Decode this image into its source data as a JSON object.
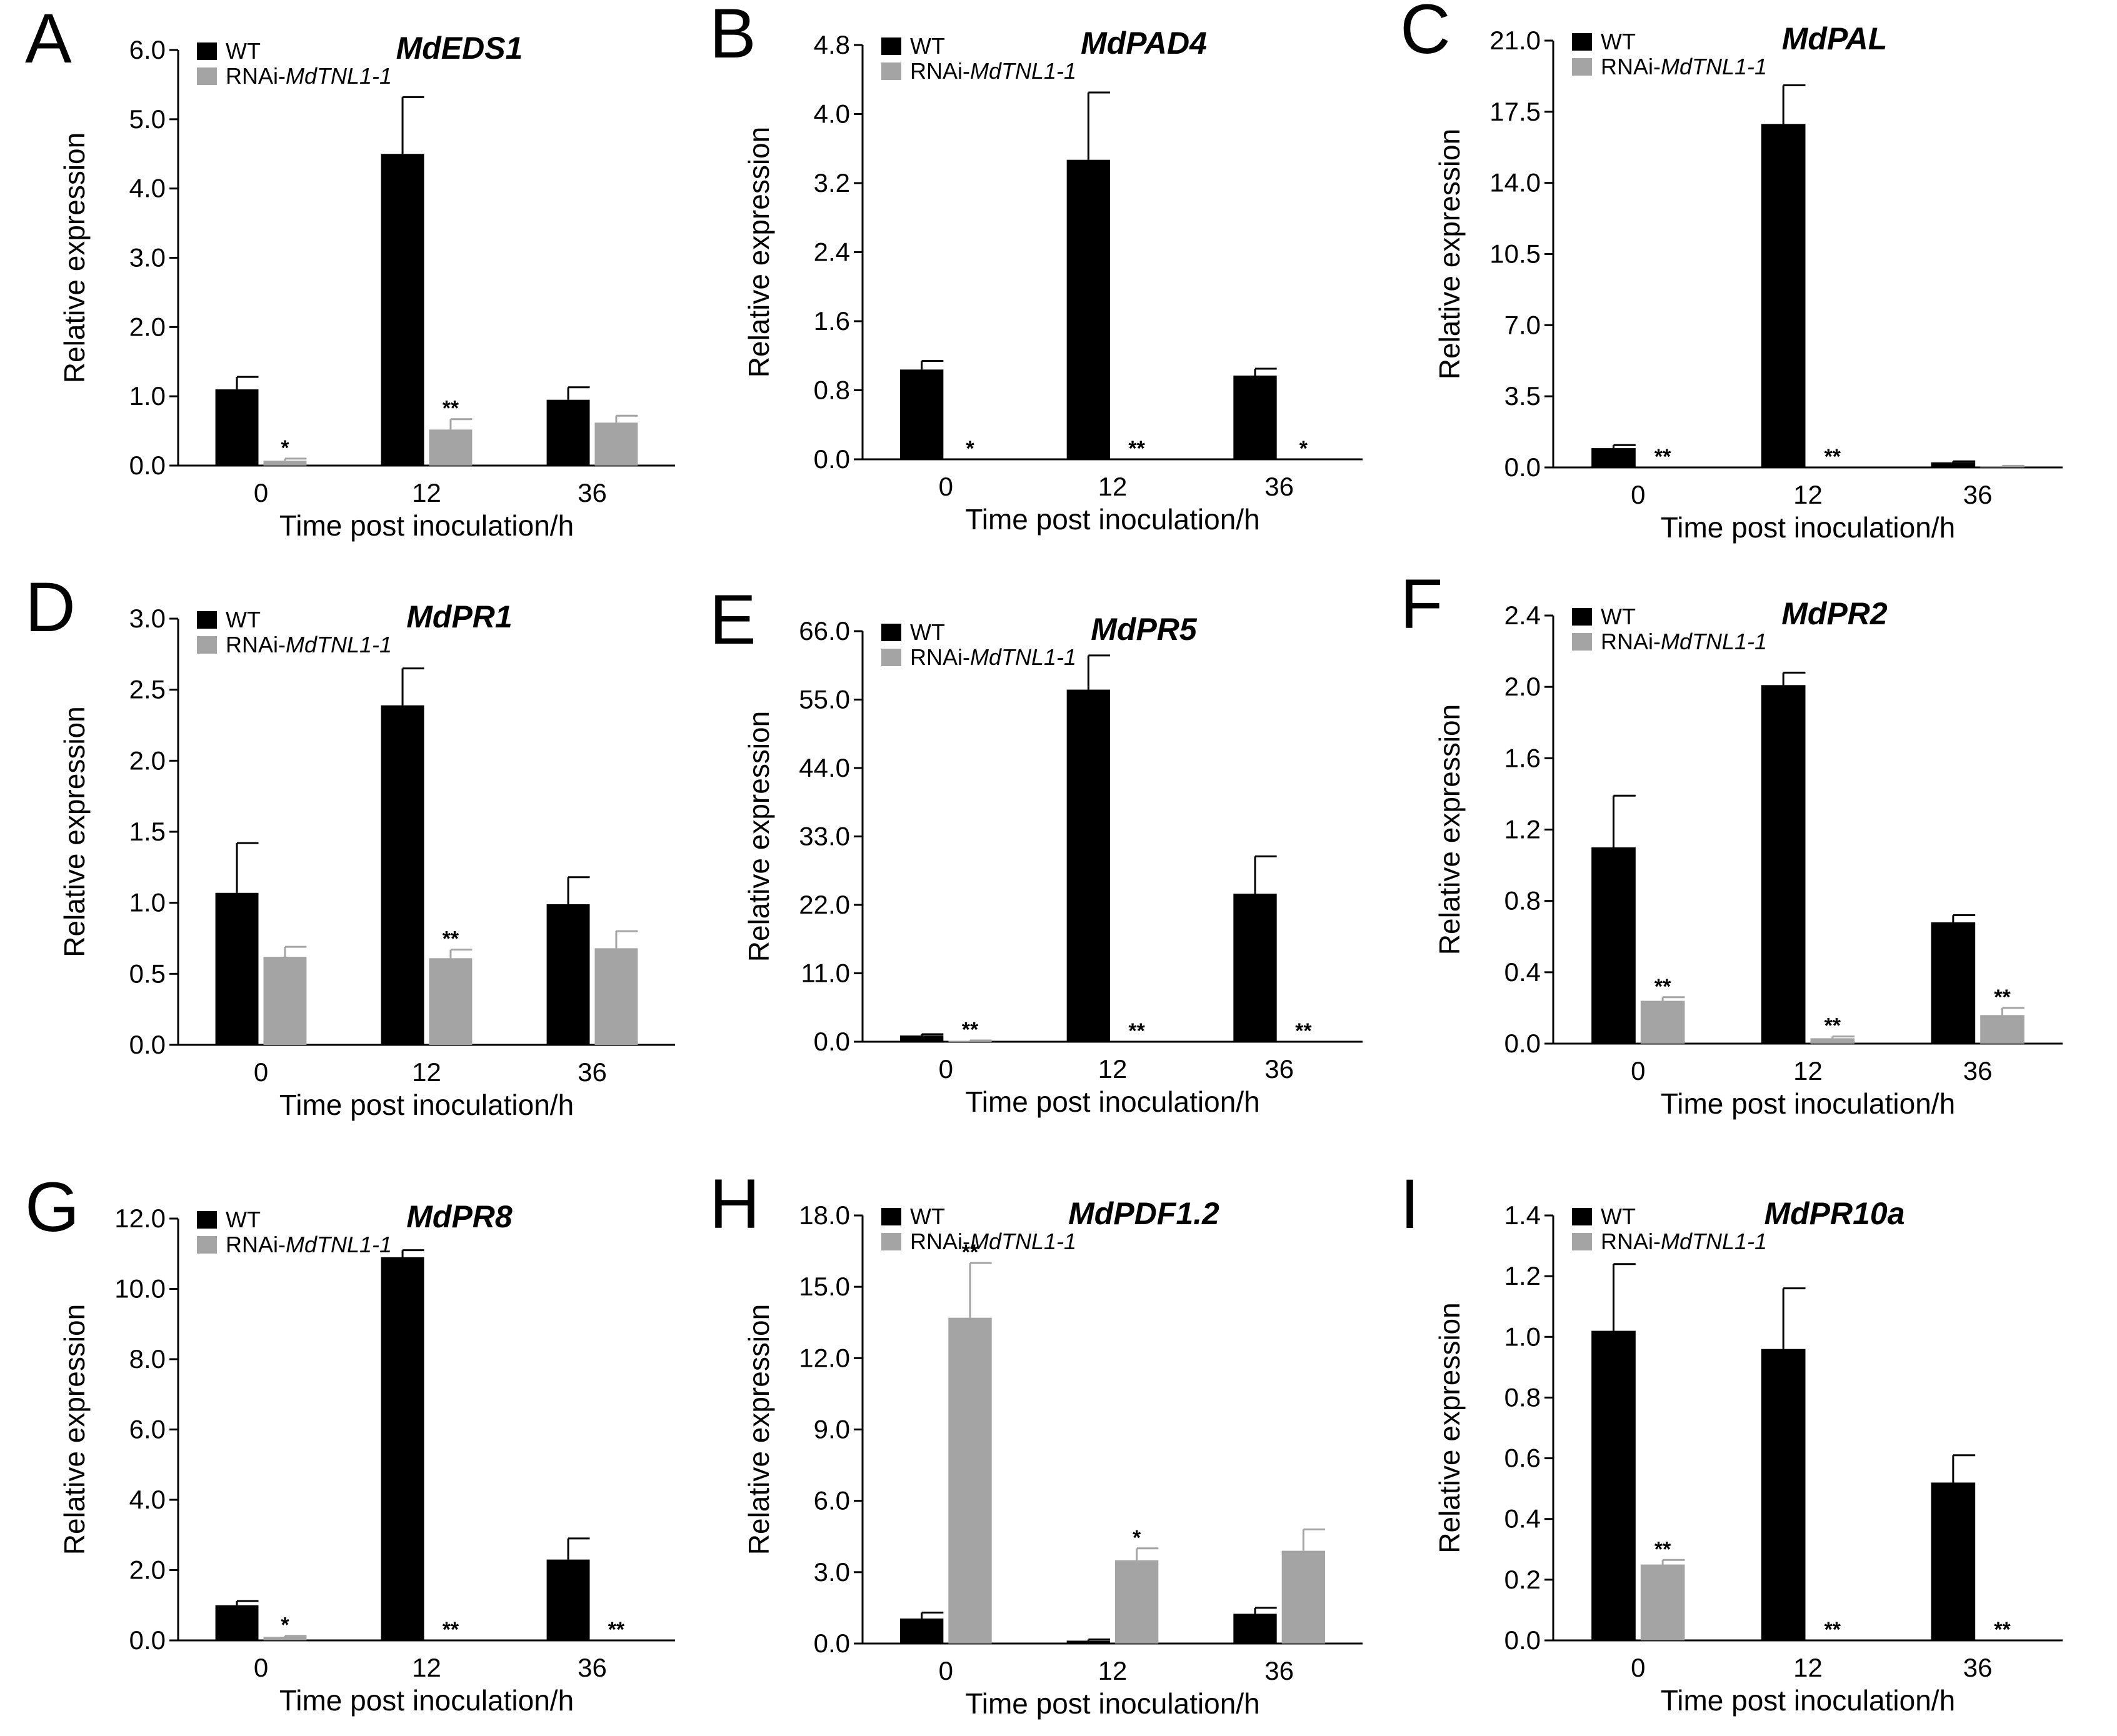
{
  "figure": {
    "legend": {
      "wt": "WT",
      "rnai_prefix": "RNAi-",
      "rnai_gene": "MdTNL1-1"
    },
    "xlabel": "Time post inoculation/h",
    "ylabel": "Relative expression",
    "colors": {
      "wt": "#000000",
      "rnai": "#a4a4a4"
    }
  },
  "chart_data": [
    {
      "panel": "A",
      "type": "bar",
      "title": "MdEDS1",
      "categories": [
        "0",
        "12",
        "36"
      ],
      "ylim": [
        0,
        6.0
      ],
      "yticks": [
        "0.0",
        "1.0",
        "2.0",
        "3.0",
        "4.0",
        "5.0",
        "6.0"
      ],
      "xlabel": "Time post inoculation/h",
      "ylabel": "Relative expression",
      "series": [
        {
          "name": "WT",
          "values": [
            1.1,
            4.5,
            0.95
          ],
          "errors": [
            0.18,
            0.82,
            0.18
          ],
          "significance": [
            "",
            "",
            ""
          ]
        },
        {
          "name": "RNAi-MdTNL1-1",
          "values": [
            0.07,
            0.52,
            0.62
          ],
          "errors": [
            0.03,
            0.15,
            0.1
          ],
          "significance": [
            "*",
            "**",
            ""
          ]
        }
      ]
    },
    {
      "panel": "B",
      "type": "bar",
      "title": "MdPAD4",
      "categories": [
        "0",
        "12",
        "36"
      ],
      "ylim": [
        0,
        4.8
      ],
      "yticks": [
        "0.0",
        "0.8",
        "1.6",
        "2.4",
        "3.2",
        "4.0",
        "4.8"
      ],
      "xlabel": "Time post inoculation/h",
      "ylabel": "Relative expression",
      "series": [
        {
          "name": "WT",
          "values": [
            1.04,
            3.47,
            0.97
          ],
          "errors": [
            0.1,
            0.78,
            0.08
          ],
          "significance": [
            "",
            "",
            ""
          ]
        },
        {
          "name": "RNAi-MdTNL1-1",
          "values": [
            0.0,
            0.0,
            0.0
          ],
          "errors": [
            0,
            0,
            0
          ],
          "significance": [
            "*",
            "**",
            "*"
          ]
        }
      ]
    },
    {
      "panel": "C",
      "type": "bar",
      "title": "MdPAL",
      "categories": [
        "0",
        "12",
        "36"
      ],
      "ylim": [
        0,
        21.0
      ],
      "yticks": [
        "0.0",
        "3.5",
        "7.0",
        "10.5",
        "14.0",
        "17.5",
        "21.0"
      ],
      "xlabel": "Time post inoculation/h",
      "ylabel": "Relative expression",
      "series": [
        {
          "name": "WT",
          "values": [
            0.95,
            16.9,
            0.25
          ],
          "errors": [
            0.15,
            1.9,
            0.05
          ],
          "significance": [
            "",
            "",
            ""
          ]
        },
        {
          "name": "RNAi-MdTNL1-1",
          "values": [
            0.0,
            0.0,
            0.06
          ],
          "errors": [
            0,
            0,
            0.02
          ],
          "significance": [
            "**",
            "**",
            ""
          ]
        }
      ]
    },
    {
      "panel": "D",
      "type": "bar",
      "title": "MdPR1",
      "categories": [
        "0",
        "12",
        "36"
      ],
      "ylim": [
        0,
        3.0
      ],
      "yticks": [
        "0.0",
        "0.5",
        "1.0",
        "1.5",
        "2.0",
        "2.5",
        "3.0"
      ],
      "xlabel": "Time post inoculation/h",
      "ylabel": "Relative expression",
      "series": [
        {
          "name": "WT",
          "values": [
            1.07,
            2.39,
            0.99
          ],
          "errors": [
            0.35,
            0.26,
            0.19
          ],
          "significance": [
            "",
            "",
            ""
          ]
        },
        {
          "name": "RNAi-MdTNL1-1",
          "values": [
            0.62,
            0.61,
            0.68
          ],
          "errors": [
            0.07,
            0.06,
            0.12
          ],
          "significance": [
            "",
            "**",
            ""
          ]
        }
      ]
    },
    {
      "panel": "E",
      "type": "bar",
      "title": "MdPR5",
      "categories": [
        "0",
        "12",
        "36"
      ],
      "ylim": [
        0,
        66.0
      ],
      "yticks": [
        "0.0",
        "11.0",
        "22.0",
        "33.0",
        "44.0",
        "55.0",
        "66.0"
      ],
      "xlabel": "Time post inoculation/h",
      "ylabel": "Relative expression",
      "series": [
        {
          "name": "WT",
          "values": [
            1.0,
            56.6,
            23.8
          ],
          "errors": [
            0.2,
            5.5,
            6.0
          ],
          "significance": [
            "",
            "",
            ""
          ]
        },
        {
          "name": "RNAi-MdTNL1-1",
          "values": [
            0.15,
            0.0,
            0.0
          ],
          "errors": [
            0.05,
            0,
            0
          ],
          "significance": [
            "**",
            "**",
            "**"
          ]
        }
      ]
    },
    {
      "panel": "F",
      "type": "bar",
      "title": "MdPR2",
      "categories": [
        "0",
        "12",
        "36"
      ],
      "ylim": [
        0,
        2.4
      ],
      "yticks": [
        "0.0",
        "0.4",
        "0.8",
        "1.2",
        "1.6",
        "2.0",
        "2.4"
      ],
      "xlabel": "Time post inoculation/h",
      "ylabel": "Relative expression",
      "series": [
        {
          "name": "WT",
          "values": [
            1.1,
            2.01,
            0.68
          ],
          "errors": [
            0.29,
            0.07,
            0.04
          ],
          "significance": [
            "",
            "",
            ""
          ]
        },
        {
          "name": "RNAi-MdTNL1-1",
          "values": [
            0.24,
            0.03,
            0.16
          ],
          "errors": [
            0.02,
            0.01,
            0.04
          ],
          "significance": [
            "**",
            "**",
            "**"
          ]
        }
      ]
    },
    {
      "panel": "G",
      "type": "bar",
      "title": "MdPR8",
      "categories": [
        "0",
        "12",
        "36"
      ],
      "ylim": [
        0,
        12.0
      ],
      "yticks": [
        "0.0",
        "2.0",
        "4.0",
        "6.0",
        "8.0",
        "10.0",
        "12.0"
      ],
      "xlabel": "Time post inoculation/h",
      "ylabel": "Relative expression",
      "series": [
        {
          "name": "WT",
          "values": [
            1.0,
            10.9,
            2.3
          ],
          "errors": [
            0.12,
            0.2,
            0.6
          ],
          "significance": [
            "",
            "",
            ""
          ]
        },
        {
          "name": "RNAi-MdTNL1-1",
          "values": [
            0.1,
            0.0,
            0.0
          ],
          "errors": [
            0.03,
            0,
            0
          ],
          "significance": [
            "*",
            "**",
            "**"
          ]
        }
      ]
    },
    {
      "panel": "H",
      "type": "bar",
      "title": "MdPDF1.2",
      "categories": [
        "0",
        "12",
        "36"
      ],
      "ylim": [
        0,
        18.0
      ],
      "yticks": [
        "0.0",
        "3.0",
        "6.0",
        "9.0",
        "12.0",
        "15.0",
        "18.0"
      ],
      "xlabel": "Time post inoculation/h",
      "ylabel": "Relative expression",
      "series": [
        {
          "name": "WT",
          "values": [
            1.05,
            0.12,
            1.25
          ],
          "errors": [
            0.25,
            0.05,
            0.25
          ],
          "significance": [
            "",
            "",
            ""
          ]
        },
        {
          "name": "RNAi-MdTNL1-1",
          "values": [
            13.7,
            3.5,
            3.9
          ],
          "errors": [
            2.3,
            0.5,
            0.9
          ],
          "significance": [
            "**",
            "*",
            ""
          ]
        }
      ]
    },
    {
      "panel": "I",
      "type": "bar",
      "title": "MdPR10a",
      "categories": [
        "0",
        "12",
        "36"
      ],
      "ylim": [
        0,
        1.4
      ],
      "yticks": [
        "0.0",
        "0.2",
        "0.4",
        "0.6",
        "0.8",
        "1.0",
        "1.2",
        "1.4"
      ],
      "xlabel": "Time post inoculation/h",
      "ylabel": "Relative expression",
      "series": [
        {
          "name": "WT",
          "values": [
            1.02,
            0.96,
            0.52
          ],
          "errors": [
            0.22,
            0.2,
            0.09
          ],
          "significance": [
            "",
            "",
            ""
          ]
        },
        {
          "name": "RNAi-MdTNL1-1",
          "values": [
            0.25,
            0.0,
            0.0
          ],
          "errors": [
            0.015,
            0,
            0
          ],
          "significance": [
            "**",
            "**",
            "**"
          ]
        }
      ]
    }
  ]
}
